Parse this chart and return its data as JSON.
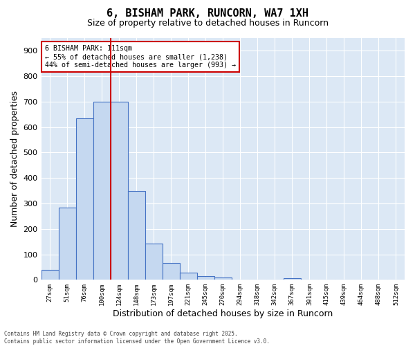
{
  "title": "6, BISHAM PARK, RUNCORN, WA7 1XH",
  "subtitle": "Size of property relative to detached houses in Runcorn",
  "xlabel": "Distribution of detached houses by size in Runcorn",
  "ylabel": "Number of detached properties",
  "bar_values": [
    40,
    283,
    635,
    700,
    700,
    350,
    143,
    65,
    27,
    15,
    10,
    0,
    0,
    0,
    5,
    0,
    0,
    0,
    0,
    0,
    0
  ],
  "xlabels": [
    "27sqm",
    "51sqm",
    "76sqm",
    "100sqm",
    "124sqm",
    "148sqm",
    "173sqm",
    "197sqm",
    "221sqm",
    "245sqm",
    "270sqm",
    "294sqm",
    "318sqm",
    "342sqm",
    "367sqm",
    "391sqm",
    "415sqm",
    "439sqm",
    "464sqm",
    "488sqm",
    "512sqm"
  ],
  "bar_color": "#c5d8f0",
  "bar_edge_color": "#4472c4",
  "vline_x": 3.5,
  "vline_color": "#cc0000",
  "annotation_title": "6 BISHAM PARK: 111sqm",
  "annotation_line1": "← 55% of detached houses are smaller (1,238)",
  "annotation_line2": "44% of semi-detached houses are larger (993) →",
  "annotation_box_color": "#cc0000",
  "ylim": [
    0,
    950
  ],
  "yticks": [
    0,
    100,
    200,
    300,
    400,
    500,
    600,
    700,
    800,
    900
  ],
  "background_color": "#dce8f5",
  "footer_line1": "Contains HM Land Registry data © Crown copyright and database right 2025.",
  "footer_line2": "Contains public sector information licensed under the Open Government Licence v3.0."
}
